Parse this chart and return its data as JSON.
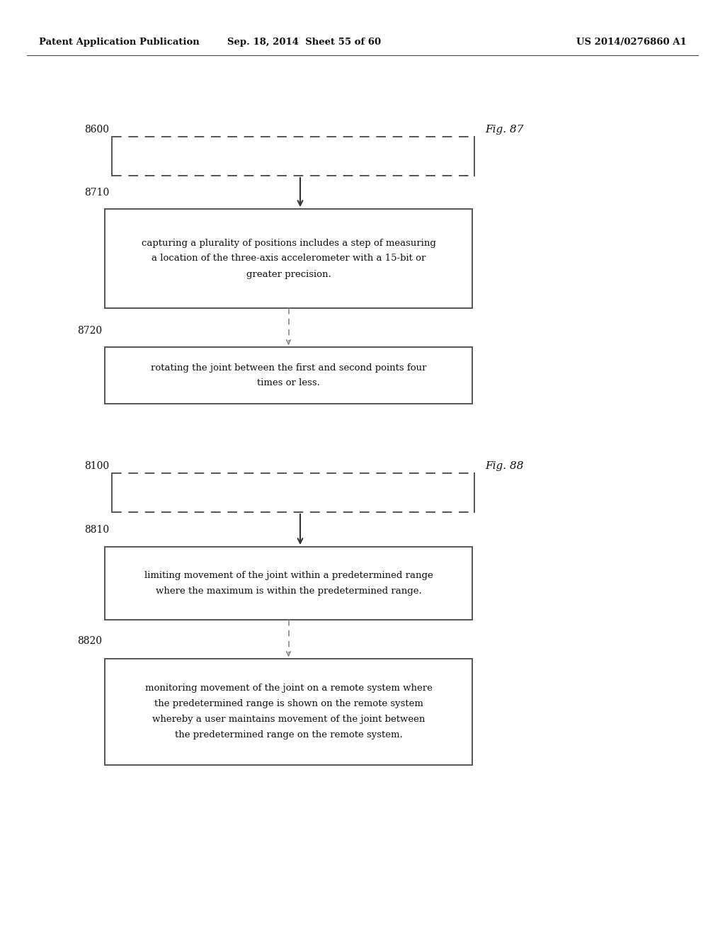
{
  "bg_color": "#ffffff",
  "header_left": "Patent Application Publication",
  "header_mid": "Sep. 18, 2014  Sheet 55 of 60",
  "header_right": "US 2014/0276860 A1",
  "fig87_label": "Fig. 87",
  "fig88_label": "Fig. 88",
  "node8600_label": "8600",
  "node8710_label": "8710",
  "node8720_label": "8720",
  "node8100_label": "8100",
  "node8810_label": "8810",
  "node8820_label": "8820",
  "box8710_text": "capturing a plurality of positions includes a step of measuring\na location of the three-axis accelerometer with a 15-bit or\ngreater precision.",
  "box8720_text": "rotating the joint between the first and second points four\ntimes or less.",
  "box8810_text": "limiting movement of the joint within a predetermined range\nwhere the maximum is within the predetermined range.",
  "box8820_text": "monitoring movement of the joint on a remote system where\nthe predetermined range is shown on the remote system\nwhereby a user maintains movement of the joint between\nthe predetermined range on the remote system.",
  "header_fontsize": 9.5,
  "label_fontsize": 10,
  "text_fontsize": 9.5,
  "fig_fontsize": 11
}
